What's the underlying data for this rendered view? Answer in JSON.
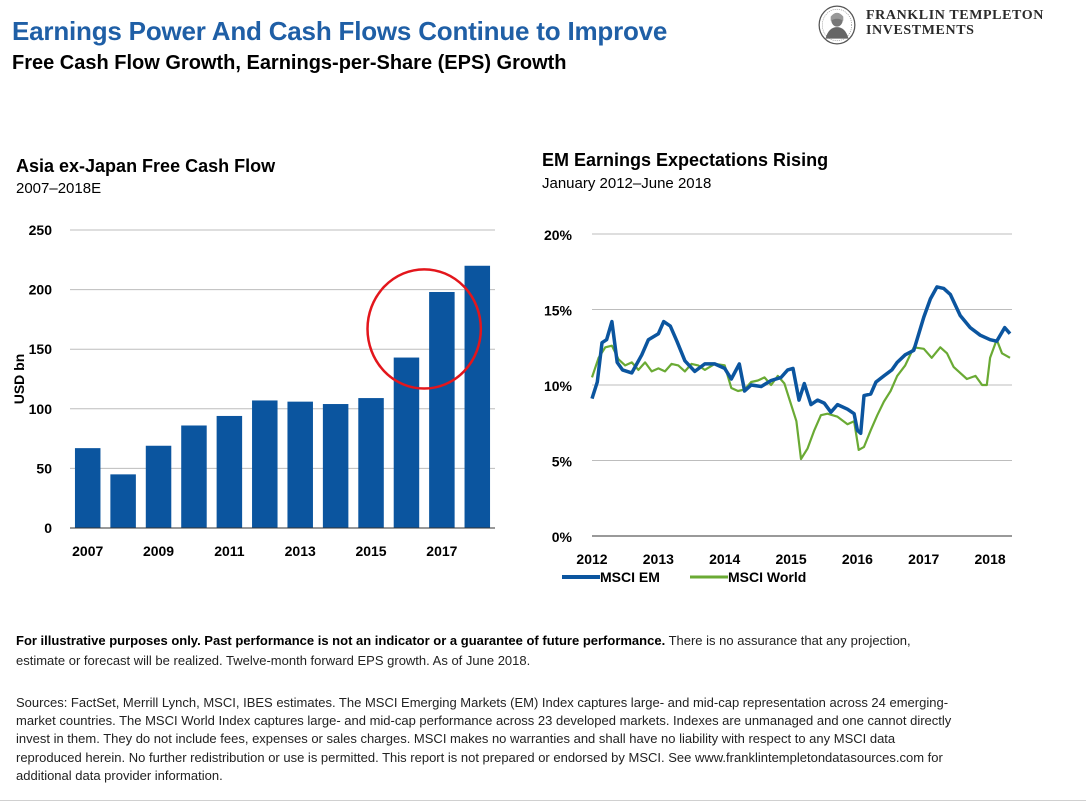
{
  "header": {
    "title": "Earnings Power And Cash Flows Continue to Improve",
    "subtitle": "Free Cash Flow Growth, Earnings-per-Share (EPS) Growth"
  },
  "logo": {
    "line1": "FRANKLIN TEMPLETON",
    "line2": "INVESTMENTS",
    "icon": "portrait-medallion-icon"
  },
  "colors": {
    "title": "#1f5fa6",
    "bar": "#0b559f",
    "em_line": "#0b559f",
    "world_line": "#6aaa34",
    "highlight_circle": "#e3161c"
  },
  "chart_data": [
    {
      "type": "bar",
      "title": "Asia ex-Japan Free Cash Flow",
      "subtitle": "2007–2018E",
      "ylabel": "USD bn",
      "xlabel": "",
      "ylim": [
        0,
        250
      ],
      "yticks": [
        "0",
        "50",
        "100",
        "150",
        "200",
        "250"
      ],
      "categories": [
        "2007",
        "2008",
        "2009",
        "2010",
        "2011",
        "2012",
        "2013",
        "2014",
        "2015",
        "2016",
        "2017",
        "2018"
      ],
      "xtick_labels": [
        "2007",
        "2009",
        "2011",
        "2013",
        "2015",
        "2017"
      ],
      "values": [
        67,
        45,
        69,
        86,
        94,
        107,
        106,
        104,
        109,
        143,
        198,
        220
      ],
      "grid": "horizontal",
      "annotation": "red circle highlighting 2016–2017 bars"
    },
    {
      "type": "line",
      "title": "EM Earnings Expectations Rising",
      "subtitle": "January 2012–June 2018",
      "ylim": [
        0,
        20
      ],
      "yticks": [
        "0%",
        "5%",
        "10%",
        "15%",
        "20%"
      ],
      "xtick_labels": [
        "2012",
        "2013",
        "2014",
        "2015",
        "2016",
        "2017",
        "2018"
      ],
      "grid": "horizontal",
      "legend_placement": "bottom",
      "series": [
        {
          "name": "MSCI EM",
          "points": [
            [
              2012.0,
              9.1
            ],
            [
              2012.08,
              10.2
            ],
            [
              2012.15,
              12.8
            ],
            [
              2012.22,
              13.0
            ],
            [
              2012.3,
              14.2
            ],
            [
              2012.38,
              11.5
            ],
            [
              2012.46,
              11.0
            ],
            [
              2012.6,
              10.8
            ],
            [
              2012.75,
              12.0
            ],
            [
              2012.85,
              13.0
            ],
            [
              2013.0,
              13.4
            ],
            [
              2013.08,
              14.2
            ],
            [
              2013.18,
              13.9
            ],
            [
              2013.28,
              12.9
            ],
            [
              2013.4,
              11.6
            ],
            [
              2013.55,
              10.9
            ],
            [
              2013.7,
              11.4
            ],
            [
              2013.85,
              11.4
            ],
            [
              2014.0,
              11.1
            ],
            [
              2014.1,
              10.4
            ],
            [
              2014.22,
              11.4
            ],
            [
              2014.3,
              9.6
            ],
            [
              2014.4,
              10.0
            ],
            [
              2014.55,
              9.9
            ],
            [
              2014.7,
              10.3
            ],
            [
              2014.85,
              10.5
            ],
            [
              2014.95,
              11.0
            ],
            [
              2015.03,
              11.1
            ],
            [
              2015.12,
              9.0
            ],
            [
              2015.2,
              10.1
            ],
            [
              2015.3,
              8.7
            ],
            [
              2015.4,
              9.0
            ],
            [
              2015.5,
              8.8
            ],
            [
              2015.6,
              8.2
            ],
            [
              2015.7,
              8.7
            ],
            [
              2015.85,
              8.4
            ],
            [
              2015.95,
              8.1
            ],
            [
              2016.0,
              7.0
            ],
            [
              2016.05,
              6.8
            ],
            [
              2016.1,
              9.3
            ],
            [
              2016.2,
              9.4
            ],
            [
              2016.28,
              10.2
            ],
            [
              2016.4,
              10.6
            ],
            [
              2016.52,
              11.0
            ],
            [
              2016.6,
              11.5
            ],
            [
              2016.72,
              12.0
            ],
            [
              2016.85,
              12.3
            ],
            [
              2017.0,
              14.5
            ],
            [
              2017.1,
              15.7
            ],
            [
              2017.2,
              16.5
            ],
            [
              2017.3,
              16.4
            ],
            [
              2017.4,
              16.0
            ],
            [
              2017.55,
              14.6
            ],
            [
              2017.7,
              13.8
            ],
            [
              2017.85,
              13.3
            ],
            [
              2018.0,
              13.0
            ],
            [
              2018.1,
              12.9
            ],
            [
              2018.22,
              13.8
            ],
            [
              2018.3,
              13.4
            ]
          ]
        },
        {
          "name": "MSCI World",
          "points": [
            [
              2012.0,
              10.5
            ],
            [
              2012.1,
              11.8
            ],
            [
              2012.2,
              12.5
            ],
            [
              2012.3,
              12.6
            ],
            [
              2012.4,
              11.7
            ],
            [
              2012.5,
              11.3
            ],
            [
              2012.6,
              11.5
            ],
            [
              2012.7,
              11.0
            ],
            [
              2012.8,
              11.5
            ],
            [
              2012.9,
              10.9
            ],
            [
              2013.0,
              11.1
            ],
            [
              2013.1,
              10.9
            ],
            [
              2013.2,
              11.4
            ],
            [
              2013.3,
              11.3
            ],
            [
              2013.4,
              10.9
            ],
            [
              2013.5,
              11.4
            ],
            [
              2013.6,
              11.3
            ],
            [
              2013.7,
              11.0
            ],
            [
              2013.85,
              11.4
            ],
            [
              2014.0,
              11.3
            ],
            [
              2014.1,
              9.8
            ],
            [
              2014.2,
              9.6
            ],
            [
              2014.3,
              9.7
            ],
            [
              2014.4,
              10.2
            ],
            [
              2014.5,
              10.3
            ],
            [
              2014.6,
              10.5
            ],
            [
              2014.7,
              10.0
            ],
            [
              2014.8,
              10.6
            ],
            [
              2014.9,
              10.1
            ],
            [
              2015.0,
              8.7
            ],
            [
              2015.08,
              7.6
            ],
            [
              2015.15,
              5.1
            ],
            [
              2015.25,
              5.8
            ],
            [
              2015.35,
              7.0
            ],
            [
              2015.45,
              8.0
            ],
            [
              2015.55,
              8.1
            ],
            [
              2015.7,
              7.9
            ],
            [
              2015.85,
              7.4
            ],
            [
              2015.95,
              7.6
            ],
            [
              2016.02,
              5.7
            ],
            [
              2016.1,
              5.9
            ],
            [
              2016.2,
              7.0
            ],
            [
              2016.3,
              8.0
            ],
            [
              2016.4,
              8.9
            ],
            [
              2016.5,
              9.6
            ],
            [
              2016.6,
              10.6
            ],
            [
              2016.72,
              11.3
            ],
            [
              2016.85,
              12.5
            ],
            [
              2017.0,
              12.4
            ],
            [
              2017.12,
              11.8
            ],
            [
              2017.25,
              12.5
            ],
            [
              2017.35,
              12.1
            ],
            [
              2017.45,
              11.2
            ],
            [
              2017.55,
              10.8
            ],
            [
              2017.65,
              10.4
            ],
            [
              2017.78,
              10.6
            ],
            [
              2017.88,
              10.0
            ],
            [
              2017.95,
              10.0
            ],
            [
              2018.0,
              11.8
            ],
            [
              2018.1,
              13.0
            ],
            [
              2018.18,
              12.1
            ],
            [
              2018.3,
              11.8
            ]
          ]
        }
      ]
    }
  ],
  "footer": {
    "disclaimer_bold": "For illustrative purposes only. Past performance is not an indicator or a guarantee of future performance.",
    "disclaimer_rest": " There is no assurance that any projection, estimate or forecast will be realized. Twelve-month forward EPS growth. As of June 2018.",
    "sources": "Sources: FactSet, Merrill Lynch, MSCI, IBES estimates. The MSCI Emerging Markets (EM) Index captures large- and mid-cap representation across 24 emerging-market countries. The MSCI World Index captures large- and mid-cap performance across 23 developed markets. Indexes are unmanaged and one cannot directly invest in them. They do not include fees, expenses or sales charges. MSCI makes no warranties and shall have no liability with respect to any MSCI data reproduced herein. No further redistribution or use is permitted. This report is not prepared or endorsed by MSCI. See www.franklintempletondatasources.com for additional data provider information."
  }
}
